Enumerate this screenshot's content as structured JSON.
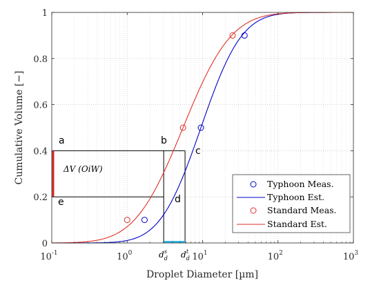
{
  "chart_data": {
    "type": "line",
    "title": "",
    "xlabel": "Droplet Diameter [µm]",
    "ylabel": "Cumulative Volume [−]",
    "xscale": "log",
    "xlim": [
      0.1,
      1000
    ],
    "ylim": [
      0,
      1
    ],
    "xticks": [
      {
        "value": 0.1,
        "base": "10",
        "exp": "-1"
      },
      {
        "value": 1,
        "base": "10",
        "exp": "0"
      },
      {
        "value": 10,
        "base": "10",
        "exp": "1"
      },
      {
        "value": 100,
        "base": "10",
        "exp": "2"
      },
      {
        "value": 1000,
        "base": "10",
        "exp": "3"
      }
    ],
    "yticks": [
      "0",
      "0.2",
      "0.4",
      "0.6",
      "0.8",
      "1"
    ],
    "grid": true,
    "legend_position": "bottom-right",
    "series": [
      {
        "name": "Typhoon Meas.",
        "kind": "scatter",
        "color": "#0000c8",
        "points": [
          [
            1.7,
            0.1
          ],
          [
            9.5,
            0.5
          ],
          [
            36,
            0.9
          ]
        ]
      },
      {
        "name": "Typhoon Est.",
        "kind": "line",
        "color": "#0000c8",
        "curve": {
          "median": 9.5,
          "sigma": 0.98
        }
      },
      {
        "name": "Standard Meas.",
        "kind": "scatter",
        "color": "#e0302a",
        "points": [
          [
            1.0,
            0.1
          ],
          [
            5.5,
            0.5
          ],
          [
            25,
            0.9
          ]
        ]
      },
      {
        "name": "Standard Est.",
        "kind": "line",
        "color": "#e0302a",
        "curve": {
          "median": 5.5,
          "sigma": 1.16
        }
      }
    ],
    "annotations": {
      "a": "a",
      "b": "b",
      "c": "c",
      "d": "d",
      "e": "e",
      "delta_label": "ΔV (OiW)",
      "ds_main": "d",
      "ds_sub": "d",
      "ds_sup": "s",
      "dt_main": "d",
      "dt_sub": "d",
      "dt_sup": "t",
      "level_upper": 0.4,
      "level_lower": 0.2,
      "delta_color": "#d62a2a",
      "range_color": "#35b7e5",
      "x_b": 3.05,
      "x_c": 5.85
    }
  }
}
